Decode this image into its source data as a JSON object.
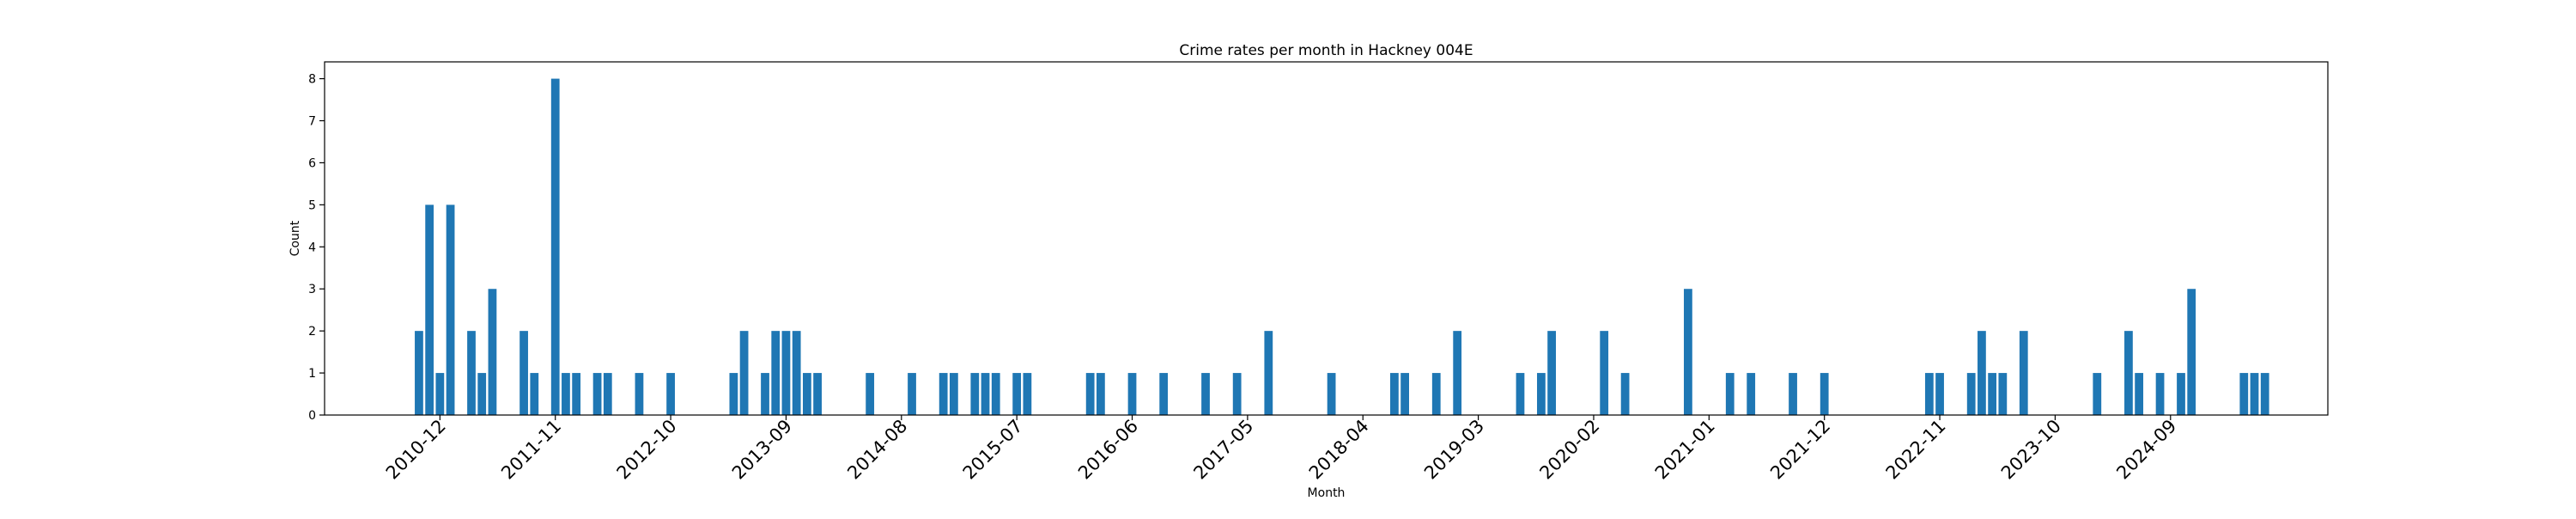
{
  "chart_data": {
    "type": "bar",
    "title": "Crime rates per month in Hackney 004E",
    "xlabel": "Month",
    "ylabel": "Count",
    "ylim": [
      0,
      8.4
    ],
    "yticks": [
      0,
      1,
      2,
      3,
      4,
      5,
      6,
      7,
      8
    ],
    "xlim": [
      "2010-01",
      "2025-12"
    ],
    "xticks": [
      "2010-12",
      "2011-11",
      "2012-10",
      "2013-09",
      "2014-08",
      "2015-07",
      "2016-06",
      "2017-05",
      "2018-04",
      "2019-03",
      "2020-02",
      "2021-01",
      "2021-12",
      "2022-11",
      "2023-10",
      "2024-09"
    ],
    "bar_color": "#1f77b4",
    "grid": false,
    "legend": "none",
    "series": [
      {
        "x": [
          "2010-10",
          "2010-11",
          "2010-12",
          "2011-01",
          "2011-03",
          "2011-04",
          "2011-05",
          "2011-08",
          "2011-09",
          "2011-11",
          "2011-12",
          "2012-01",
          "2012-03",
          "2012-04",
          "2012-07",
          "2012-10",
          "2013-04",
          "2013-05",
          "2013-07",
          "2013-08",
          "2013-09",
          "2013-10",
          "2013-11",
          "2013-12",
          "2014-05",
          "2014-09",
          "2014-12",
          "2015-01",
          "2015-03",
          "2015-04",
          "2015-05",
          "2015-07",
          "2015-08",
          "2016-02",
          "2016-03",
          "2016-06",
          "2016-09",
          "2017-01",
          "2017-04",
          "2017-07",
          "2018-01",
          "2018-07",
          "2018-08",
          "2018-11",
          "2019-01",
          "2019-07",
          "2019-09",
          "2019-10",
          "2020-03",
          "2020-05",
          "2020-11",
          "2021-03",
          "2021-05",
          "2021-09",
          "2021-12",
          "2022-10",
          "2022-11",
          "2023-02",
          "2023-03",
          "2023-04",
          "2023-05",
          "2023-07",
          "2024-02",
          "2024-05",
          "2024-06",
          "2024-08",
          "2024-10",
          "2024-11",
          "2025-04",
          "2025-05",
          "2025-06"
        ],
        "values": [
          2,
          5,
          1,
          5,
          2,
          1,
          3,
          2,
          1,
          8,
          1,
          1,
          1,
          1,
          1,
          1,
          1,
          2,
          1,
          2,
          2,
          2,
          1,
          1,
          1,
          1,
          1,
          1,
          1,
          1,
          1,
          1,
          1,
          1,
          1,
          1,
          1,
          1,
          1,
          2,
          1,
          1,
          1,
          1,
          2,
          1,
          1,
          2,
          2,
          1,
          3,
          1,
          1,
          1,
          1,
          1,
          1,
          1,
          2,
          1,
          1,
          2,
          1,
          2,
          1,
          1,
          1,
          3,
          1,
          1,
          1
        ]
      }
    ]
  }
}
